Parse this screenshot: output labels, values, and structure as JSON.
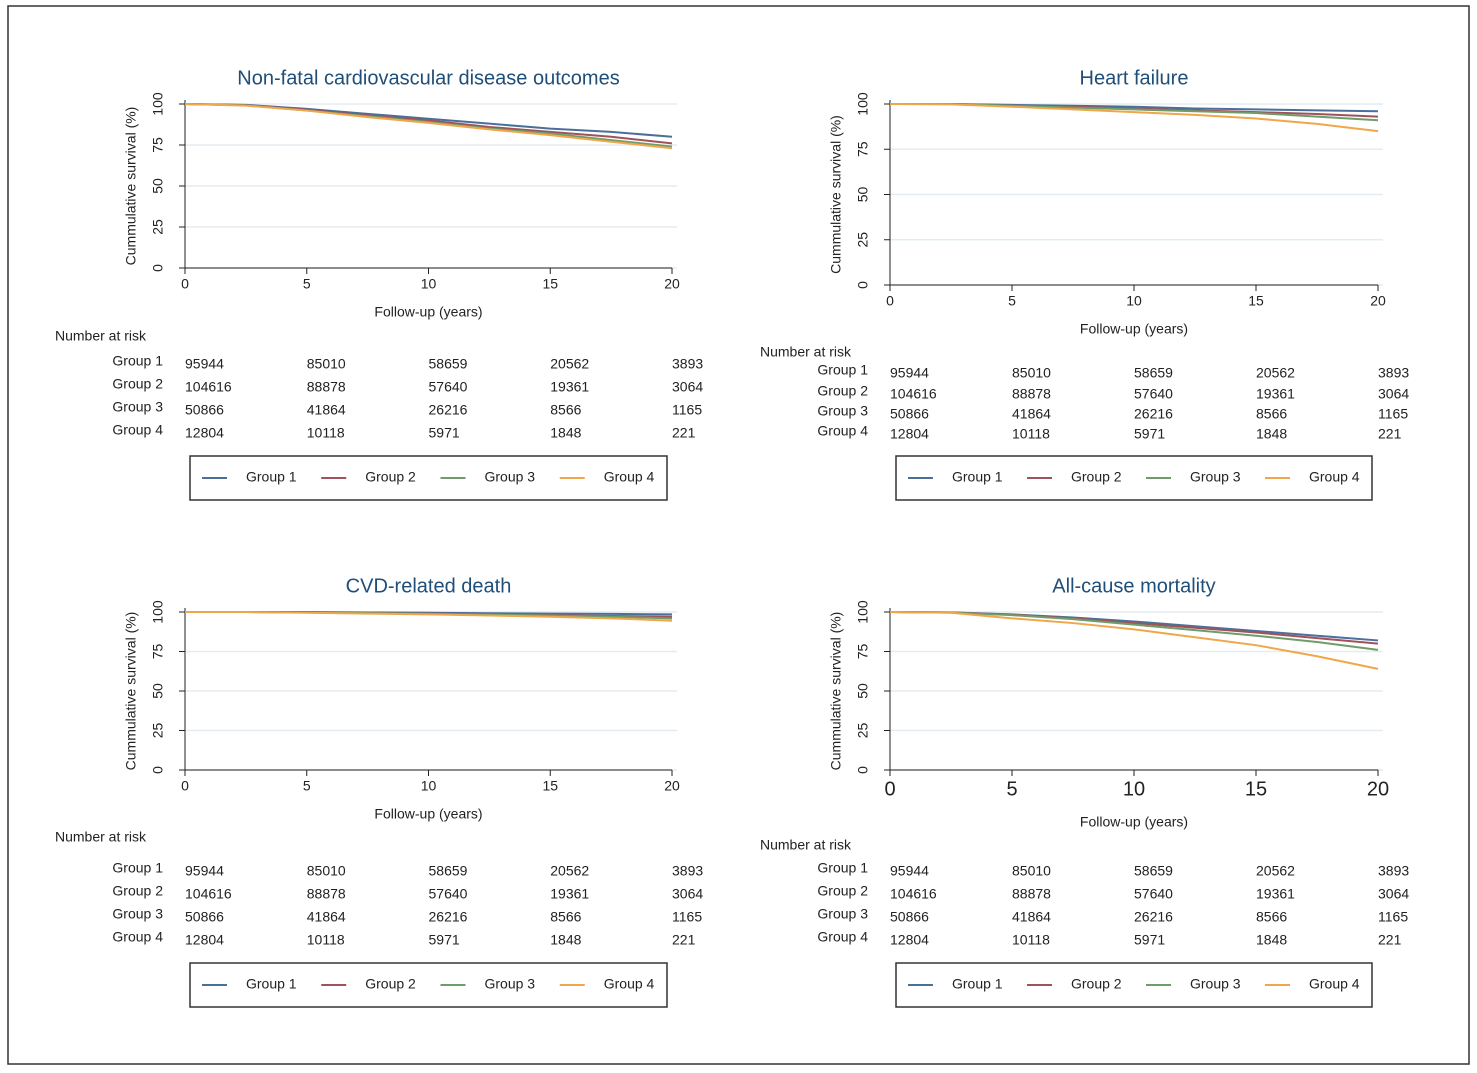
{
  "chart_data": [
    {
      "type": "line",
      "title": "Non-fatal cardiovascular disease outcomes",
      "x_label": "Follow-up (years)",
      "y_label": "Cummulative survival (%)",
      "x": [
        0,
        2.5,
        5,
        7.5,
        10,
        12.5,
        15,
        17.5,
        20
      ],
      "series": [
        {
          "name": "Group 1",
          "color": "#4a6f9b",
          "values": [
            100,
            99.5,
            97,
            94,
            91,
            88,
            85,
            83,
            80
          ]
        },
        {
          "name": "Group 2",
          "color": "#a0525b",
          "values": [
            100,
            99.3,
            96.5,
            93,
            90,
            86,
            83,
            80,
            76
          ]
        },
        {
          "name": "Group 3",
          "color": "#6e9d6a",
          "values": [
            100,
            99.2,
            96,
            92.5,
            89,
            85,
            82,
            78,
            74
          ]
        },
        {
          "name": "Group 4",
          "color": "#f0a64a",
          "values": [
            100,
            99,
            96,
            92,
            88.5,
            84.5,
            81,
            77,
            73
          ]
        }
      ],
      "xlim": [
        0,
        20
      ],
      "xticks": [
        0,
        5,
        10,
        15,
        20
      ],
      "ylim": [
        0,
        100
      ],
      "yticks": [
        0,
        25,
        50,
        75,
        100
      ],
      "grid": true,
      "risk_table": {
        "title": "Number at risk",
        "rows": [
          [
            95944,
            85010,
            58659,
            20562,
            3893
          ],
          [
            104616,
            88878,
            57640,
            19361,
            3064
          ],
          [
            50866,
            41864,
            26216,
            8566,
            1165
          ],
          [
            12804,
            10118,
            5971,
            1848,
            221
          ]
        ]
      }
    },
    {
      "type": "line",
      "title": "Heart failure",
      "x_label": "Follow-up (years)",
      "y_label": "Cummulative survival (%)",
      "x": [
        0,
        2.5,
        5,
        7.5,
        10,
        12.5,
        15,
        17.5,
        20
      ],
      "series": [
        {
          "name": "Group 1",
          "color": "#4a6f9b",
          "values": [
            100,
            100,
            99.5,
            99,
            98.5,
            97.5,
            97,
            96.5,
            96
          ]
        },
        {
          "name": "Group 2",
          "color": "#a0525b",
          "values": [
            100,
            100,
            99,
            98.5,
            97.5,
            96.5,
            95.5,
            94.5,
            93
          ]
        },
        {
          "name": "Group 3",
          "color": "#6e9d6a",
          "values": [
            100,
            100,
            99,
            98,
            97,
            96,
            95,
            93,
            91
          ]
        },
        {
          "name": "Group 4",
          "color": "#f0a64a",
          "values": [
            100,
            99.8,
            98.5,
            97,
            95.5,
            94,
            92,
            89,
            85
          ]
        }
      ],
      "xlim": [
        0,
        20
      ],
      "xticks": [
        0,
        5,
        10,
        15,
        20
      ],
      "ylim": [
        0,
        100
      ],
      "yticks": [
        0,
        25,
        50,
        75,
        100
      ],
      "grid": true,
      "risk_table": {
        "title": "Number at risk",
        "rows": [
          [
            95944,
            85010,
            58659,
            20562,
            3893
          ],
          [
            104616,
            88878,
            57640,
            19361,
            3064
          ],
          [
            50866,
            41864,
            26216,
            8566,
            1165
          ],
          [
            12804,
            10118,
            5971,
            1848,
            221
          ]
        ]
      }
    },
    {
      "type": "line",
      "title": "CVD-related death",
      "x_label": "Follow-up (years)",
      "y_label": "Cummulative survival (%)",
      "x": [
        0,
        2.5,
        5,
        7.5,
        10,
        12.5,
        15,
        17.5,
        20
      ],
      "series": [
        {
          "name": "Group 1",
          "color": "#4a6f9b",
          "values": [
            100,
            100,
            100,
            99.7,
            99.5,
            99.2,
            99,
            98.8,
            98.5
          ]
        },
        {
          "name": "Group 2",
          "color": "#a0525b",
          "values": [
            100,
            100,
            99.8,
            99.5,
            99,
            98.5,
            98,
            97.5,
            97
          ]
        },
        {
          "name": "Group 3",
          "color": "#6e9d6a",
          "values": [
            100,
            100,
            99.7,
            99.3,
            98.8,
            98.3,
            97.8,
            97,
            96
          ]
        },
        {
          "name": "Group 4",
          "color": "#f0a64a",
          "values": [
            100,
            100,
            99.5,
            99,
            98.5,
            97.8,
            97,
            96,
            94.5
          ]
        }
      ],
      "xlim": [
        0,
        20
      ],
      "xticks": [
        0,
        5,
        10,
        15,
        20
      ],
      "ylim": [
        0,
        100
      ],
      "yticks": [
        0,
        25,
        50,
        75,
        100
      ],
      "grid": true,
      "risk_table": {
        "title": "Number at risk",
        "rows": [
          [
            95944,
            85010,
            58659,
            20562,
            3893
          ],
          [
            104616,
            88878,
            57640,
            19361,
            3064
          ],
          [
            50866,
            41864,
            26216,
            8566,
            1165
          ],
          [
            12804,
            10118,
            5971,
            1848,
            221
          ]
        ]
      }
    },
    {
      "type": "line",
      "title": "All-cause mortality",
      "x_label": "Follow-up (years)",
      "y_label": "Cummulative survival (%)",
      "x": [
        0,
        2.5,
        5,
        7.5,
        10,
        12.5,
        15,
        17.5,
        20
      ],
      "series": [
        {
          "name": "Group 1",
          "color": "#4a6f9b",
          "values": [
            100,
            99.8,
            98.5,
            96.5,
            94,
            91,
            88,
            85,
            82
          ]
        },
        {
          "name": "Group 2",
          "color": "#a0525b",
          "values": [
            100,
            99.7,
            98.3,
            96,
            93,
            90,
            87,
            83.5,
            80
          ]
        },
        {
          "name": "Group 3",
          "color": "#6e9d6a",
          "values": [
            100,
            99.6,
            98,
            95.5,
            92,
            88.5,
            85,
            81,
            76
          ]
        },
        {
          "name": "Group 4",
          "color": "#f0a64a",
          "values": [
            100,
            99.5,
            96,
            93,
            89,
            84,
            79,
            72,
            64
          ]
        }
      ],
      "xlim": [
        0,
        20
      ],
      "xticks": [
        0,
        5,
        10,
        15,
        20
      ],
      "ylim": [
        0,
        100
      ],
      "yticks": [
        0,
        25,
        50,
        75,
        100
      ],
      "grid": true,
      "risk_table": {
        "title": "Number at risk",
        "rows": [
          [
            95944,
            85010,
            58659,
            20562,
            3893
          ],
          [
            104616,
            88878,
            57640,
            19361,
            3064
          ],
          [
            50866,
            41864,
            26216,
            8566,
            1165
          ],
          [
            12804,
            10118,
            5971,
            1848,
            221
          ]
        ]
      }
    }
  ]
}
